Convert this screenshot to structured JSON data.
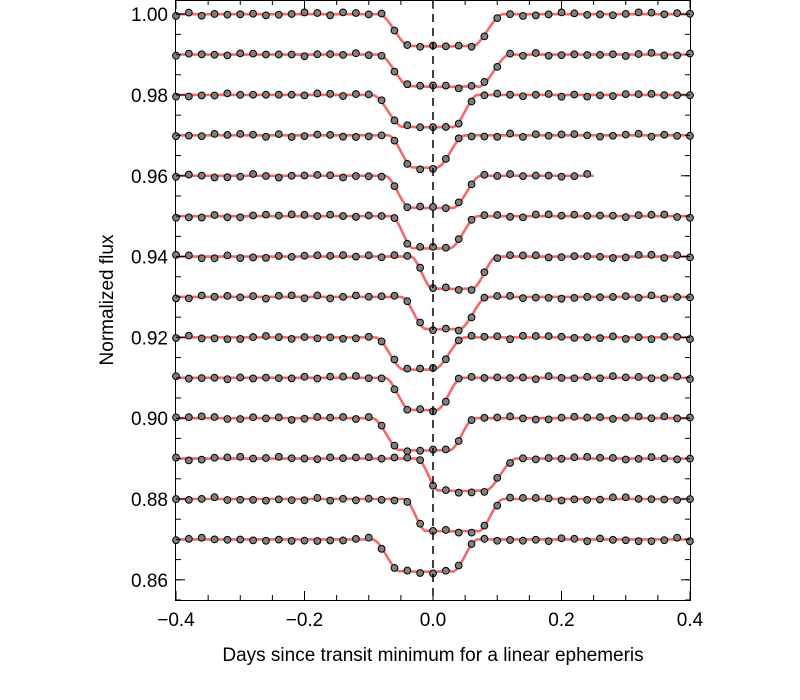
{
  "chart_data": {
    "type": "scatter",
    "title": "",
    "xlabel": "Days since transit minimum for a linear ephemeris",
    "ylabel": "Normalized flux",
    "xlim": [
      -0.4,
      0.4
    ],
    "ylim": [
      0.855,
      1.0035
    ],
    "x_ticks": [
      -0.4,
      -0.2,
      0.0,
      0.2,
      0.4
    ],
    "x_tick_labels": [
      "−0.4",
      "−0.2",
      "0.0",
      "0.2",
      "0.4"
    ],
    "y_ticks": [
      0.86,
      0.88,
      0.9,
      0.92,
      0.94,
      0.96,
      0.98,
      1.0
    ],
    "y_tick_labels": [
      "0.86",
      "0.88",
      "0.90",
      "0.92",
      "0.94",
      "0.96",
      "0.98",
      "1.00"
    ],
    "grid": false,
    "legend": "none",
    "reference_line": {
      "x": 0.0,
      "style": "dashed",
      "color": "#000000"
    },
    "colors": {
      "model": "#f26a6a",
      "points": "#808080",
      "point_edge": "#000000"
    },
    "transit_depth": 0.008,
    "cadence_days": 0.02,
    "series": [
      {
        "baseline": 1.0,
        "ingress_start": -0.085,
        "ingress_end": -0.035,
        "egress_start": 0.06,
        "egress_end": 0.11,
        "x_range": [
          -0.4,
          0.4
        ]
      },
      {
        "baseline": 0.99,
        "ingress_start": -0.085,
        "ingress_end": -0.035,
        "egress_start": 0.07,
        "egress_end": 0.12,
        "x_range": [
          -0.4,
          0.4
        ]
      },
      {
        "baseline": 0.98,
        "ingress_start": -0.095,
        "ingress_end": -0.045,
        "egress_start": 0.03,
        "egress_end": 0.07,
        "x_range": [
          -0.4,
          0.4
        ]
      },
      {
        "baseline": 0.97,
        "ingress_start": -0.07,
        "ingress_end": -0.03,
        "egress_start": 0.005,
        "egress_end": 0.05,
        "x_range": [
          -0.4,
          0.4
        ]
      },
      {
        "baseline": 0.96,
        "ingress_start": -0.075,
        "ingress_end": -0.035,
        "egress_start": 0.03,
        "egress_end": 0.075,
        "x_range": [
          -0.4,
          0.25
        ]
      },
      {
        "baseline": 0.95,
        "ingress_start": -0.065,
        "ingress_end": -0.03,
        "egress_start": 0.025,
        "egress_end": 0.07,
        "x_range": [
          -0.4,
          0.4
        ]
      },
      {
        "baseline": 0.94,
        "ingress_start": -0.035,
        "ingress_end": 0.0,
        "egress_start": 0.06,
        "egress_end": 0.1,
        "x_range": [
          -0.4,
          0.4
        ]
      },
      {
        "baseline": 0.93,
        "ingress_start": -0.05,
        "ingress_end": -0.01,
        "egress_start": 0.04,
        "egress_end": 0.085,
        "x_range": [
          -0.4,
          0.4
        ]
      },
      {
        "baseline": 0.92,
        "ingress_start": -0.09,
        "ingress_end": -0.045,
        "egress_start": 0.0,
        "egress_end": 0.05,
        "x_range": [
          -0.4,
          0.4
        ]
      },
      {
        "baseline": 0.91,
        "ingress_start": -0.075,
        "ingress_end": -0.035,
        "egress_start": 0.005,
        "egress_end": 0.045,
        "x_range": [
          -0.4,
          0.4
        ]
      },
      {
        "baseline": 0.9,
        "ingress_start": -0.095,
        "ingress_end": -0.05,
        "egress_start": 0.025,
        "egress_end": 0.065,
        "x_range": [
          -0.4,
          0.4
        ]
      },
      {
        "baseline": 0.89,
        "ingress_start": -0.025,
        "ingress_end": 0.01,
        "egress_start": 0.08,
        "egress_end": 0.13,
        "x_range": [
          -0.4,
          0.4
        ]
      },
      {
        "baseline": 0.88,
        "ingress_start": -0.045,
        "ingress_end": -0.01,
        "egress_start": 0.07,
        "egress_end": 0.11,
        "x_range": [
          -0.4,
          0.4
        ]
      },
      {
        "baseline": 0.87,
        "ingress_start": -0.095,
        "ingress_end": -0.05,
        "egress_start": 0.03,
        "egress_end": 0.07,
        "x_range": [
          -0.4,
          0.4
        ]
      }
    ]
  }
}
